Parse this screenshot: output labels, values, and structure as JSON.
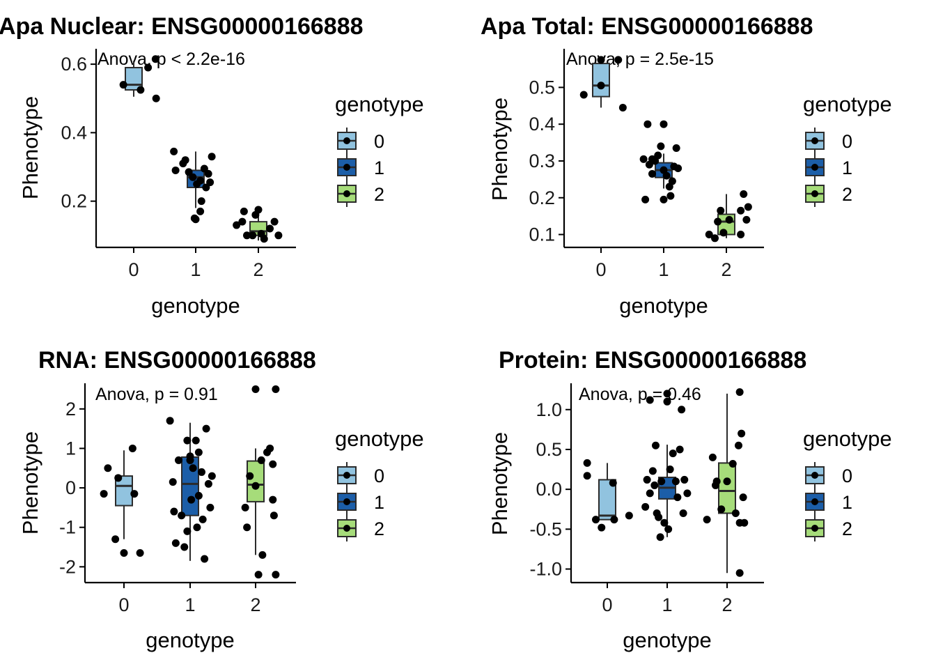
{
  "chart_data": [
    {
      "type": "box",
      "title": "Apa Nuclear: ENSG00000166888",
      "xlabel": "genotype",
      "ylabel": "Phenotype",
      "categories": [
        "0",
        "1",
        "2"
      ],
      "yticks": [
        0.2,
        0.4,
        0.6
      ],
      "ytick_labels": [
        "0.2",
        "0.4",
        "0.6"
      ],
      "ylim": [
        0.065,
        0.645
      ],
      "annotation": "Anova, p < 2.2e-16",
      "boxes": [
        {
          "genotype": "0",
          "q1": 0.525,
          "median": 0.54,
          "q3": 0.59,
          "whisker_low": 0.505,
          "whisker_high": 0.61
        },
        {
          "genotype": "1",
          "q1": 0.24,
          "median": 0.27,
          "q3": 0.29,
          "whisker_low": 0.18,
          "whisker_high": 0.345
        },
        {
          "genotype": "2",
          "q1": 0.1,
          "median": 0.112,
          "q3": 0.14,
          "whisker_low": 0.085,
          "whisker_high": 0.165
        }
      ],
      "points": [
        {
          "x": -0.18,
          "y": 0.54
        },
        {
          "x": 0.12,
          "y": 0.525
        },
        {
          "x": 0.25,
          "y": 0.59
        },
        {
          "x": 0.38,
          "y": 0.615
        },
        {
          "x": 0.39,
          "y": 0.5
        },
        {
          "x": -0.38,
          "y": 0.345
        },
        {
          "x": -0.35,
          "y": 0.29
        },
        {
          "x": -0.22,
          "y": 0.31
        },
        {
          "x": -0.12,
          "y": 0.285
        },
        {
          "x": -0.18,
          "y": 0.32
        },
        {
          "x": -0.05,
          "y": 0.27
        },
        {
          "x": 0.02,
          "y": 0.25
        },
        {
          "x": 0.08,
          "y": 0.26
        },
        {
          "x": 0.15,
          "y": 0.295
        },
        {
          "x": 0.22,
          "y": 0.28
        },
        {
          "x": 0.28,
          "y": 0.33
        },
        {
          "x": 0.18,
          "y": 0.24
        },
        {
          "x": 0.1,
          "y": 0.2
        },
        {
          "x": 0.08,
          "y": 0.17
        },
        {
          "x": -0.02,
          "y": 0.15
        },
        {
          "x": 0.0,
          "y": 0.147
        },
        {
          "x": 0.25,
          "y": 0.255
        },
        {
          "x": -0.38,
          "y": 0.13
        },
        {
          "x": -0.28,
          "y": 0.14
        },
        {
          "x": -0.25,
          "y": 0.17
        },
        {
          "x": -0.2,
          "y": 0.1
        },
        {
          "x": -0.1,
          "y": 0.1
        },
        {
          "x": -0.05,
          "y": 0.16
        },
        {
          "x": 0.0,
          "y": 0.175
        },
        {
          "x": 0.05,
          "y": 0.105
        },
        {
          "x": 0.1,
          "y": 0.09
        },
        {
          "x": 0.2,
          "y": 0.12
        },
        {
          "x": 0.28,
          "y": 0.14
        },
        {
          "x": 0.35,
          "y": 0.1
        }
      ]
    },
    {
      "type": "box",
      "title": "Apa Total: ENSG00000166888",
      "xlabel": "genotype",
      "ylabel": "Phenotype",
      "categories": [
        "0",
        "1",
        "2"
      ],
      "yticks": [
        0.1,
        0.2,
        0.3,
        0.4,
        0.5
      ],
      "ytick_labels": [
        "0.1",
        "0.2",
        "0.3",
        "0.4",
        "0.5"
      ],
      "ylim": [
        0.065,
        0.605
      ],
      "annotation": "Anova, p = 2.5e-15",
      "boxes": [
        {
          "genotype": "0",
          "q1": 0.475,
          "median": 0.505,
          "q3": 0.565,
          "whisker_low": 0.445,
          "whisker_high": 0.575
        },
        {
          "genotype": "1",
          "q1": 0.255,
          "median": 0.275,
          "q3": 0.295,
          "whisker_low": 0.225,
          "whisker_high": 0.32
        },
        {
          "genotype": "2",
          "q1": 0.1,
          "median": 0.135,
          "q3": 0.155,
          "whisker_low": 0.09,
          "whisker_high": 0.21
        }
      ],
      "points": [
        {
          "x": -0.3,
          "y": 0.48
        },
        {
          "x": 0.0,
          "y": 0.505
        },
        {
          "x": 0.0,
          "y": 0.575
        },
        {
          "x": 0.3,
          "y": 0.575
        },
        {
          "x": 0.38,
          "y": 0.445
        },
        {
          "x": -0.35,
          "y": 0.305
        },
        {
          "x": -0.32,
          "y": 0.195
        },
        {
          "x": -0.28,
          "y": 0.4
        },
        {
          "x": -0.25,
          "y": 0.29
        },
        {
          "x": -0.2,
          "y": 0.265
        },
        {
          "x": -0.15,
          "y": 0.3
        },
        {
          "x": -0.1,
          "y": 0.315
        },
        {
          "x": -0.05,
          "y": 0.34
        },
        {
          "x": 0.0,
          "y": 0.275
        },
        {
          "x": 0.0,
          "y": 0.4
        },
        {
          "x": 0.0,
          "y": 0.195
        },
        {
          "x": 0.05,
          "y": 0.26
        },
        {
          "x": 0.1,
          "y": 0.23
        },
        {
          "x": 0.15,
          "y": 0.245
        },
        {
          "x": 0.18,
          "y": 0.285
        },
        {
          "x": 0.22,
          "y": 0.335
        },
        {
          "x": 0.25,
          "y": 0.28
        },
        {
          "x": 0.12,
          "y": 0.205
        },
        {
          "x": -0.2,
          "y": 0.305
        },
        {
          "x": -0.3,
          "y": 0.1
        },
        {
          "x": -0.2,
          "y": 0.09
        },
        {
          "x": -0.15,
          "y": 0.135
        },
        {
          "x": -0.1,
          "y": 0.165
        },
        {
          "x": -0.05,
          "y": 0.105
        },
        {
          "x": 0.05,
          "y": 0.14
        },
        {
          "x": 0.25,
          "y": 0.165
        },
        {
          "x": 0.25,
          "y": 0.1
        },
        {
          "x": 0.3,
          "y": 0.21
        },
        {
          "x": 0.35,
          "y": 0.14
        },
        {
          "x": 0.38,
          "y": 0.175
        }
      ]
    },
    {
      "type": "box",
      "title": "RNA: ENSG00000166888",
      "xlabel": "genotype",
      "ylabel": "Phenotype",
      "categories": [
        "0",
        "1",
        "2"
      ],
      "yticks": [
        -2,
        -1,
        0,
        1,
        2
      ],
      "ytick_labels": [
        "-2",
        "-1",
        "0",
        "1",
        "2"
      ],
      "ylim": [
        -2.4,
        2.65
      ],
      "annotation": "Anova, p = 0.91",
      "boxes": [
        {
          "genotype": "0",
          "q1": -0.45,
          "median": 0.05,
          "q3": 0.3,
          "whisker_low": -1.3,
          "whisker_high": 0.95
        },
        {
          "genotype": "1",
          "q1": -0.7,
          "median": 0.1,
          "q3": 0.78,
          "whisker_low": -1.85,
          "whisker_high": 1.65
        },
        {
          "genotype": "2",
          "q1": -0.35,
          "median": 0.08,
          "q3": 0.68,
          "whisker_low": -1.7,
          "whisker_high": 1.0
        }
      ],
      "points": [
        {
          "x": -0.35,
          "y": -0.15
        },
        {
          "x": -0.28,
          "y": 0.5
        },
        {
          "x": -0.15,
          "y": -1.3
        },
        {
          "x": -0.1,
          "y": 0.25
        },
        {
          "x": 0.0,
          "y": -1.65
        },
        {
          "x": 0.15,
          "y": 1.0
        },
        {
          "x": 0.18,
          "y": -0.15
        },
        {
          "x": 0.28,
          "y": -1.65
        },
        {
          "x": -0.35,
          "y": 1.7
        },
        {
          "x": -0.3,
          "y": 0.15
        },
        {
          "x": -0.28,
          "y": -0.6
        },
        {
          "x": -0.25,
          "y": -1.4
        },
        {
          "x": -0.2,
          "y": 0.7
        },
        {
          "x": -0.15,
          "y": -0.7
        },
        {
          "x": -0.1,
          "y": -1.5
        },
        {
          "x": -0.05,
          "y": 1.2
        },
        {
          "x": 0.0,
          "y": 0.7
        },
        {
          "x": 0.02,
          "y": -0.3
        },
        {
          "x": 0.05,
          "y": 0.5
        },
        {
          "x": 0.1,
          "y": 1.2
        },
        {
          "x": 0.12,
          "y": -1.0
        },
        {
          "x": 0.15,
          "y": 0.9
        },
        {
          "x": 0.2,
          "y": 0.4
        },
        {
          "x": 0.22,
          "y": -0.8
        },
        {
          "x": 0.25,
          "y": -1.8
        },
        {
          "x": 0.28,
          "y": 1.5
        },
        {
          "x": 0.32,
          "y": 0.1
        },
        {
          "x": 0.38,
          "y": 0.3
        },
        {
          "x": 0.35,
          "y": -0.5
        },
        {
          "x": -0.05,
          "y": -1.1
        },
        {
          "x": 0.15,
          "y": -0.2
        },
        {
          "x": 0.0,
          "y": 0.8
        },
        {
          "x": -0.18,
          "y": -0.5
        },
        {
          "x": -0.15,
          "y": -1.0
        },
        {
          "x": 0.0,
          "y": 2.5
        },
        {
          "x": 0.05,
          "y": -2.2
        },
        {
          "x": 0.1,
          "y": 0.7
        },
        {
          "x": 0.12,
          "y": -1.7
        },
        {
          "x": 0.2,
          "y": 0.9
        },
        {
          "x": 0.25,
          "y": 1.0
        },
        {
          "x": 0.3,
          "y": 0.6
        },
        {
          "x": 0.3,
          "y": -0.3
        },
        {
          "x": 0.32,
          "y": -0.7
        },
        {
          "x": 0.35,
          "y": -2.2
        },
        {
          "x": 0.35,
          "y": 2.5
        },
        {
          "x": 0.0,
          "y": 0.05
        },
        {
          "x": -0.1,
          "y": 0.3
        }
      ]
    },
    {
      "type": "box",
      "title": "Protein: ENSG00000166888",
      "xlabel": "genotype",
      "ylabel": "Phenotype",
      "categories": [
        "0",
        "1",
        "2"
      ],
      "yticks": [
        -1.0,
        -0.5,
        0.0,
        0.5,
        1.0
      ],
      "ytick_labels": [
        "-1.0",
        "-0.5",
        "0.0",
        "0.5",
        "1.0"
      ],
      "ylim": [
        -1.17,
        1.33
      ],
      "annotation": "Anova, p = 0.46",
      "boxes": [
        {
          "genotype": "0",
          "q1": -0.38,
          "median": -0.33,
          "q3": 0.12,
          "whisker_low": -0.38,
          "whisker_high": 0.33
        },
        {
          "genotype": "1",
          "q1": -0.12,
          "median": 0.02,
          "q3": 0.15,
          "whisker_low": -0.6,
          "whisker_high": 0.56
        },
        {
          "genotype": "2",
          "q1": -0.3,
          "median": -0.02,
          "q3": 0.33,
          "whisker_low": -1.05,
          "whisker_high": 1.2
        }
      ],
      "points": [
        {
          "x": -0.35,
          "y": 0.33
        },
        {
          "x": -0.35,
          "y": 0.17
        },
        {
          "x": -0.2,
          "y": -0.38
        },
        {
          "x": -0.1,
          "y": -0.48
        },
        {
          "x": 0.1,
          "y": 0.08
        },
        {
          "x": 0.12,
          "y": -0.38
        },
        {
          "x": 0.38,
          "y": -0.33
        },
        {
          "x": -0.38,
          "y": -0.22
        },
        {
          "x": -0.35,
          "y": 0.12
        },
        {
          "x": -0.3,
          "y": -0.05
        },
        {
          "x": -0.25,
          "y": 0.23
        },
        {
          "x": -0.2,
          "y": 0.55
        },
        {
          "x": -0.18,
          "y": -0.3
        },
        {
          "x": -0.12,
          "y": -0.6
        },
        {
          "x": -0.1,
          "y": 0.1
        },
        {
          "x": -0.05,
          "y": -0.42
        },
        {
          "x": 0.0,
          "y": 1.1
        },
        {
          "x": 0.0,
          "y": 1.2
        },
        {
          "x": 0.02,
          "y": -0.5
        },
        {
          "x": 0.05,
          "y": 0.25
        },
        {
          "x": 0.1,
          "y": 0.45
        },
        {
          "x": 0.15,
          "y": 0.1
        },
        {
          "x": 0.18,
          "y": -0.1
        },
        {
          "x": 0.22,
          "y": 0.5
        },
        {
          "x": 0.3,
          "y": 0.12
        },
        {
          "x": 0.35,
          "y": -0.05
        },
        {
          "x": -0.22,
          "y": 0.05
        },
        {
          "x": -0.15,
          "y": -0.35
        },
        {
          "x": 0.25,
          "y": 1.0
        },
        {
          "x": -0.3,
          "y": 1.12
        },
        {
          "x": 0.28,
          "y": -0.3
        },
        {
          "x": -0.35,
          "y": -0.38
        },
        {
          "x": -0.2,
          "y": 0.05
        },
        {
          "x": -0.1,
          "y": -0.25
        },
        {
          "x": 0.0,
          "y": 0.1
        },
        {
          "x": 0.1,
          "y": 0.32
        },
        {
          "x": 0.15,
          "y": -0.3
        },
        {
          "x": 0.2,
          "y": 0.55
        },
        {
          "x": 0.22,
          "y": -0.42
        },
        {
          "x": 0.25,
          "y": 0.7
        },
        {
          "x": 0.28,
          "y": -0.1
        },
        {
          "x": 0.3,
          "y": -0.42
        },
        {
          "x": 0.22,
          "y": 1.22
        },
        {
          "x": 0.22,
          "y": -1.05
        },
        {
          "x": -0.25,
          "y": 0.4
        },
        {
          "x": -0.18,
          "y": 0.1
        }
      ]
    }
  ],
  "legend": {
    "title": "genotype",
    "items": [
      {
        "label": "0",
        "fill": "#91c3df"
      },
      {
        "label": "1",
        "fill": "#1c5ea8"
      },
      {
        "label": "2",
        "fill": "#a6dc7a"
      }
    ]
  },
  "colors": {
    "box_outline": "#2b2b2b",
    "point": "#000000",
    "axis": "#000000"
  }
}
